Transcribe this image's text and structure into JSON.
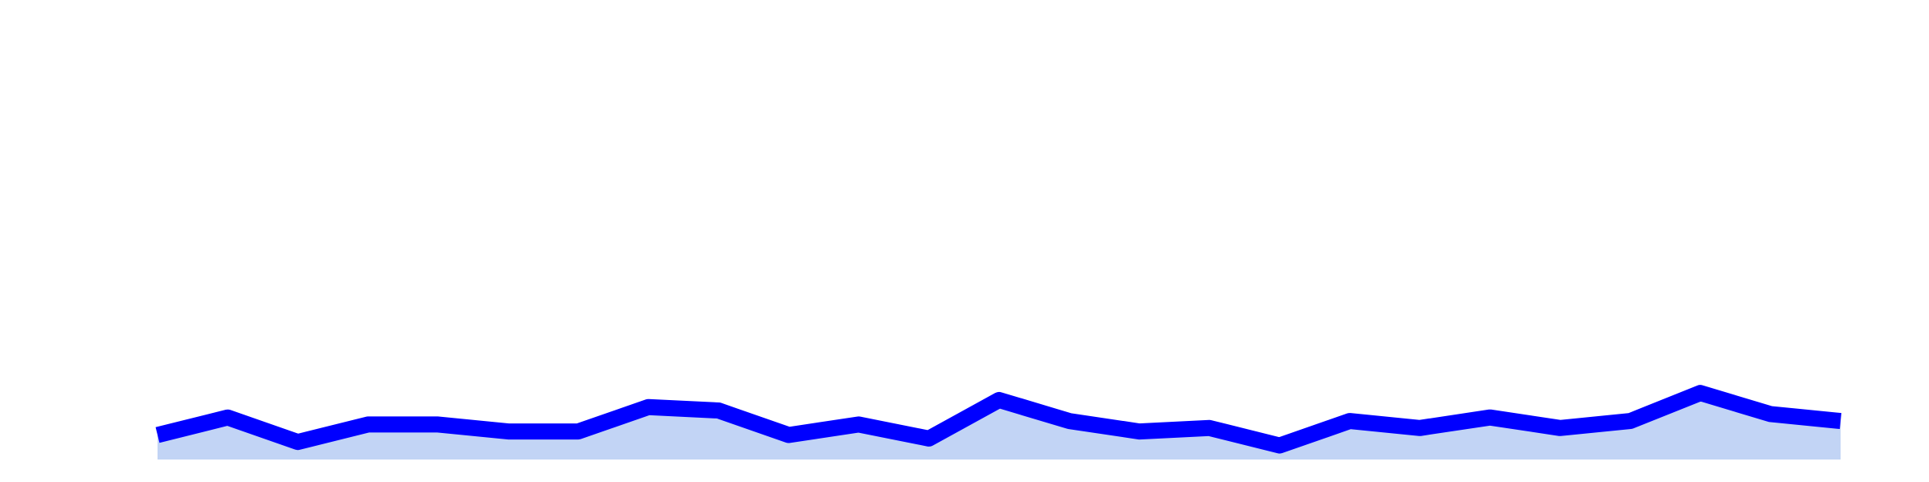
{
  "chart_data": {
    "type": "area",
    "x": [
      1,
      2,
      3,
      4,
      5,
      6,
      7,
      8,
      9,
      10,
      11,
      12,
      13,
      14,
      15,
      16,
      17,
      18,
      19,
      20,
      21,
      22,
      23,
      24,
      25
    ],
    "series": [
      {
        "values": [
          23,
          28,
          21,
          26,
          26,
          24,
          24,
          31,
          30,
          23,
          26,
          22,
          33,
          27,
          24,
          25,
          20,
          27,
          25,
          28,
          25,
          27,
          35,
          29,
          27
        ]
      }
    ],
    "ylim": [
      16,
      145
    ],
    "grid": false,
    "line_color": "#0000ff",
    "fill_color": "#c2d4f5"
  }
}
